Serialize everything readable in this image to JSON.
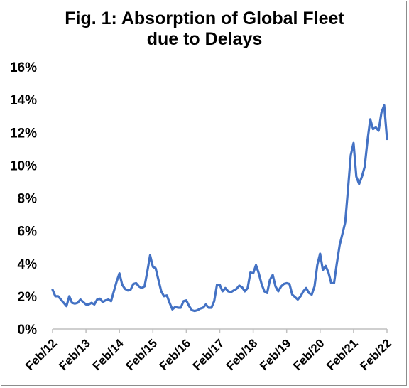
{
  "chart_data": {
    "type": "line",
    "title_lines": [
      "Fig. 1: Absorption of Global Fleet",
      "due to Delays"
    ],
    "xlabel": "",
    "ylabel": "",
    "x_tick_labels": [
      "Feb/12",
      "Feb/13",
      "Feb/14",
      "Feb/15",
      "Feb/16",
      "Feb/17",
      "Feb/18",
      "Feb/19",
      "Feb/20",
      "Feb/21",
      "Feb/22"
    ],
    "y_tick_labels": [
      "0%",
      "2%",
      "4%",
      "6%",
      "8%",
      "10%",
      "12%",
      "14%",
      "16%"
    ],
    "ylim": [
      0,
      16
    ],
    "y_unit": "%",
    "x_range_months": [
      0,
      120
    ],
    "grid": false,
    "legend": "none",
    "line_color": "#4472C4",
    "series": [
      {
        "points": [
          [
            0,
            2.4
          ],
          [
            1,
            2.0
          ],
          [
            2,
            2.0
          ],
          [
            3,
            1.8
          ],
          [
            4,
            1.6
          ],
          [
            5,
            1.4
          ],
          [
            6,
            2.0
          ],
          [
            7,
            1.6
          ],
          [
            8,
            1.55
          ],
          [
            9,
            1.6
          ],
          [
            10,
            1.8
          ],
          [
            11,
            1.65
          ],
          [
            12,
            1.5
          ],
          [
            13,
            1.5
          ],
          [
            14,
            1.6
          ],
          [
            15,
            1.5
          ],
          [
            16,
            1.8
          ],
          [
            17,
            1.85
          ],
          [
            18,
            1.65
          ],
          [
            19,
            1.75
          ],
          [
            20,
            1.8
          ],
          [
            21,
            1.7
          ],
          [
            22,
            2.3
          ],
          [
            23,
            2.9
          ],
          [
            24,
            3.4
          ],
          [
            25,
            2.7
          ],
          [
            26,
            2.45
          ],
          [
            27,
            2.35
          ],
          [
            28,
            2.4
          ],
          [
            29,
            2.75
          ],
          [
            30,
            2.8
          ],
          [
            31,
            2.6
          ],
          [
            32,
            2.5
          ],
          [
            33,
            2.6
          ],
          [
            34,
            3.5
          ],
          [
            35,
            4.5
          ],
          [
            36,
            3.8
          ],
          [
            37,
            3.7
          ],
          [
            38,
            3.0
          ],
          [
            39,
            2.3
          ],
          [
            40,
            2.0
          ],
          [
            41,
            2.05
          ],
          [
            42,
            1.6
          ],
          [
            43,
            1.2
          ],
          [
            44,
            1.35
          ],
          [
            45,
            1.3
          ],
          [
            46,
            1.3
          ],
          [
            47,
            1.7
          ],
          [
            48,
            1.75
          ],
          [
            49,
            1.4
          ],
          [
            50,
            1.15
          ],
          [
            51,
            1.1
          ],
          [
            52,
            1.15
          ],
          [
            53,
            1.25
          ],
          [
            54,
            1.3
          ],
          [
            55,
            1.5
          ],
          [
            56,
            1.3
          ],
          [
            57,
            1.3
          ],
          [
            58,
            1.7
          ],
          [
            59,
            2.7
          ],
          [
            60,
            2.7
          ],
          [
            61,
            2.3
          ],
          [
            62,
            2.5
          ],
          [
            63,
            2.3
          ],
          [
            64,
            2.25
          ],
          [
            65,
            2.35
          ],
          [
            66,
            2.45
          ],
          [
            67,
            2.65
          ],
          [
            68,
            2.55
          ],
          [
            69,
            2.3
          ],
          [
            70,
            2.5
          ],
          [
            71,
            3.45
          ],
          [
            72,
            3.4
          ],
          [
            73,
            3.9
          ],
          [
            74,
            3.4
          ],
          [
            75,
            2.75
          ],
          [
            76,
            2.3
          ],
          [
            77,
            2.2
          ],
          [
            78,
            3.0
          ],
          [
            79,
            3.3
          ],
          [
            80,
            2.6
          ],
          [
            81,
            2.3
          ],
          [
            82,
            2.6
          ],
          [
            83,
            2.75
          ],
          [
            84,
            2.8
          ],
          [
            85,
            2.75
          ],
          [
            86,
            2.1
          ],
          [
            87,
            1.95
          ],
          [
            88,
            1.8
          ],
          [
            89,
            2.0
          ],
          [
            90,
            2.3
          ],
          [
            91,
            2.5
          ],
          [
            92,
            2.2
          ],
          [
            93,
            2.1
          ],
          [
            94,
            2.6
          ],
          [
            95,
            3.9
          ],
          [
            96,
            4.6
          ],
          [
            97,
            3.6
          ],
          [
            98,
            3.85
          ],
          [
            99,
            3.45
          ],
          [
            100,
            2.8
          ],
          [
            101,
            2.8
          ],
          [
            102,
            4.0
          ],
          [
            103,
            5.1
          ],
          [
            104,
            5.8
          ],
          [
            105,
            6.5
          ],
          [
            106,
            8.5
          ],
          [
            107,
            10.6
          ],
          [
            108,
            11.35
          ],
          [
            109,
            9.3
          ],
          [
            110,
            8.85
          ],
          [
            111,
            9.3
          ],
          [
            112,
            9.9
          ],
          [
            113,
            11.5
          ],
          [
            114,
            12.8
          ],
          [
            115,
            12.2
          ],
          [
            116,
            12.3
          ],
          [
            117,
            12.1
          ],
          [
            118,
            13.2
          ],
          [
            119,
            13.65
          ],
          [
            120,
            11.6
          ]
        ]
      }
    ]
  }
}
